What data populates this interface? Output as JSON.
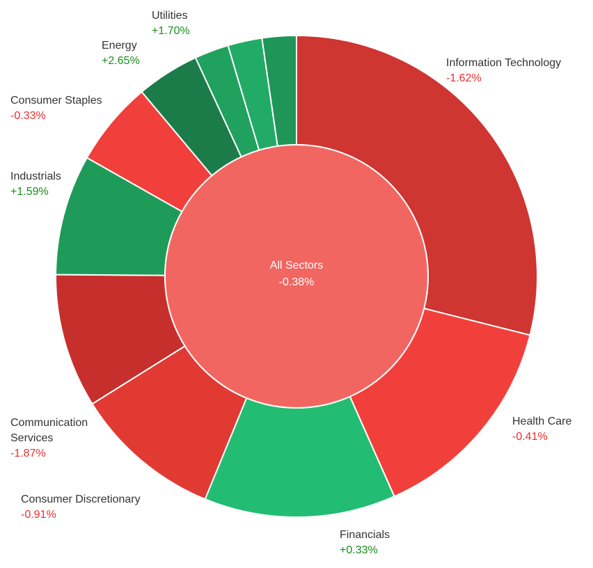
{
  "chart_data": {
    "type": "pie",
    "subtype": "donut",
    "center": {
      "name": "All Sectors",
      "change": "-0.38%"
    },
    "colors": {
      "positive_text": "#1a8c1a",
      "negative_text": "#e8302e",
      "center_fill": "#f26661",
      "divider": "#ffffff"
    },
    "slices": [
      {
        "name": "Information Technology",
        "name2": "",
        "change": "-1.62%",
        "weight": 31.5,
        "color": "#cf3531"
      },
      {
        "name": "Health Care",
        "name2": "",
        "change": "-0.41%",
        "weight": 15.7,
        "color": "#f1403b"
      },
      {
        "name": "Financials",
        "name2": "",
        "change": "+0.33%",
        "weight": 14.0,
        "color": "#22bd72"
      },
      {
        "name": "Consumer Discretionary",
        "name2": "",
        "change": "-0.91%",
        "weight": 10.8,
        "color": "#e03a33"
      },
      {
        "name": "Communication",
        "name2": "Services",
        "change": "-1.87%",
        "weight": 9.8,
        "color": "#c62f2c"
      },
      {
        "name": "Industrials",
        "name2": "",
        "change": "+1.59%",
        "weight": 8.8,
        "color": "#1f9b59"
      },
      {
        "name": "Consumer Staples",
        "name2": "",
        "change": "-0.33%",
        "weight": 6.2,
        "color": "#f13f3c"
      },
      {
        "name": "Energy",
        "name2": "",
        "change": "+2.65%",
        "weight": 4.6,
        "color": "#1b7c4a"
      },
      {
        "name": "",
        "name2": "",
        "change": "",
        "weight": 2.5,
        "color": "#20a15e"
      },
      {
        "name": "",
        "name2": "",
        "change": "",
        "weight": 2.5,
        "color": "#22ab66"
      },
      {
        "name": "Utilities",
        "name2": "",
        "change": "+1.70%",
        "weight": 2.5,
        "color": "#1f9558"
      }
    ]
  }
}
